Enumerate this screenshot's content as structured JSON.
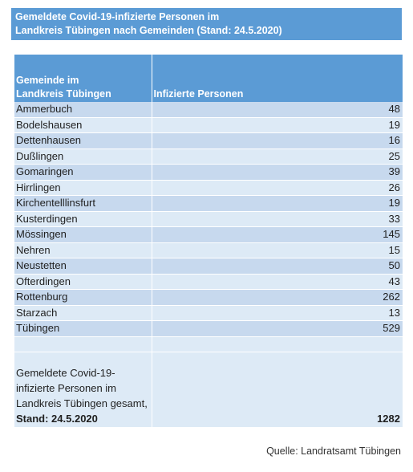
{
  "title": {
    "line1": "Gemeldete Covid-19-infizierte Personen im",
    "line2": "Landkreis Tübingen nach Gemeinden (Stand: 24.5.2020)"
  },
  "table": {
    "header": {
      "col1_line1": "Gemeinde im",
      "col1_line2": "Landkreis Tübingen",
      "col2": "Infizierte Personen"
    },
    "rows": [
      {
        "name": "Ammerbuch",
        "value": "48"
      },
      {
        "name": "Bodelshausen",
        "value": "19"
      },
      {
        "name": "Dettenhausen",
        "value": "16"
      },
      {
        "name": "Dußlingen",
        "value": "25"
      },
      {
        "name": "Gomaringen",
        "value": "39"
      },
      {
        "name": "Hirrlingen",
        "value": "26"
      },
      {
        "name": "Kirchentelllinsfurt",
        "value": "19"
      },
      {
        "name": "Kusterdingen",
        "value": "33"
      },
      {
        "name": "Mössingen",
        "value": "145"
      },
      {
        "name": "Nehren",
        "value": "15"
      },
      {
        "name": "Neustetten",
        "value": "50"
      },
      {
        "name": "Ofterdingen",
        "value": "43"
      },
      {
        "name": "Rottenburg",
        "value": "262"
      },
      {
        "name": "Starzach",
        "value": "13"
      },
      {
        "name": "Tübingen",
        "value": "529"
      },
      {
        "name": "",
        "value": ""
      }
    ],
    "total": {
      "line1": "Gemeldete Covid-19-",
      "line2": "infizierte Personen im",
      "line3": "Landkreis Tübingen gesamt,",
      "line4": "Stand: 24.5.2020",
      "value": "1282"
    }
  },
  "source": "Quelle: Landratsamt Tübingen"
}
